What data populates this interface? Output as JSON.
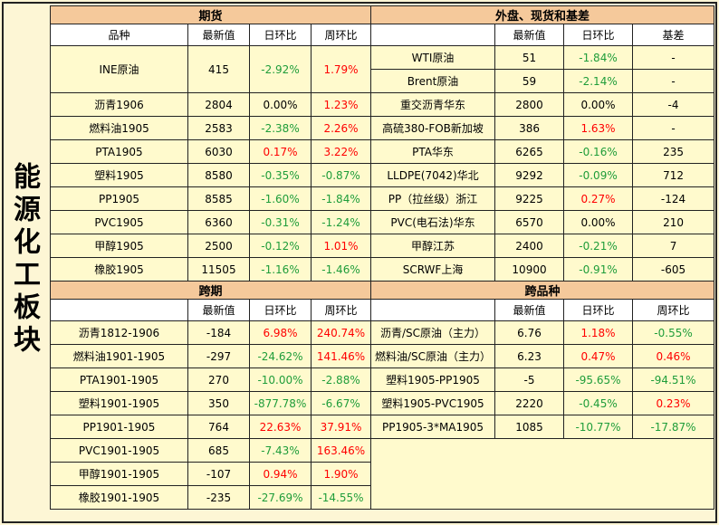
{
  "sidebar_title": "能源化工板块",
  "futures": {
    "title": "期货",
    "headers": [
      "品种",
      "最新值",
      "日环比",
      "周环比"
    ],
    "rows": [
      [
        "INE原油",
        "415",
        "-2.92%",
        "1.79%"
      ],
      [
        "沥青1906",
        "2804",
        "0.00%",
        "1.23%"
      ],
      [
        "燃料油1905",
        "2583",
        "-2.38%",
        "2.26%"
      ],
      [
        "PTA1905",
        "6030",
        "0.17%",
        "3.22%"
      ],
      [
        "塑料1905",
        "8580",
        "-0.35%",
        "-0.87%"
      ],
      [
        "PP1905",
        "8585",
        "-1.60%",
        "-1.84%"
      ],
      [
        "PVC1905",
        "6360",
        "-0.31%",
        "-1.24%"
      ],
      [
        "甲醇1905",
        "2500",
        "-0.12%",
        "1.01%"
      ],
      [
        "橡胶1905",
        "11505",
        "-1.16%",
        "-1.46%"
      ]
    ]
  },
  "external": {
    "title": "外盘、现货和基差",
    "headers": [
      "",
      "最新值",
      "日环比",
      "基差"
    ],
    "rows": [
      [
        "WTI原油",
        "51",
        "-1.84%",
        "-"
      ],
      [
        "Brent原油",
        "59",
        "-2.14%",
        "-"
      ],
      [
        "重交沥青华东",
        "2800",
        "0.00%",
        "-4"
      ],
      [
        "高硫380-FOB新加坡",
        "386",
        "1.63%",
        "-"
      ],
      [
        "PTA华东",
        "6265",
        "-0.16%",
        "235"
      ],
      [
        "LLDPE(7042)华北",
        "9292",
        "-0.09%",
        "712"
      ],
      [
        "PP（拉丝级）浙江",
        "9225",
        "0.27%",
        "-124"
      ],
      [
        "PVC(电石法)华东",
        "6570",
        "0.00%",
        "210"
      ],
      [
        "甲醇江苏",
        "2400",
        "-0.21%",
        "7"
      ],
      [
        "SCRWF上海",
        "10900",
        "-0.91%",
        "-605"
      ]
    ]
  },
  "spread": {
    "title": "跨期",
    "headers": [
      "",
      "最新值",
      "日环比",
      "周环比"
    ],
    "rows": [
      [
        "沥青1812-1906",
        "-184",
        "6.98%",
        "240.74%"
      ],
      [
        "燃料油1901-1905",
        "-297",
        "-24.62%",
        "141.46%"
      ],
      [
        "PTA1901-1905",
        "270",
        "-10.00%",
        "-2.88%"
      ],
      [
        "塑料1901-1905",
        "350",
        "-877.78%",
        "-6.67%"
      ],
      [
        "PP1901-1905",
        "764",
        "22.63%",
        "37.91%"
      ],
      [
        "PVC1901-1905",
        "685",
        "-7.43%",
        "163.46%"
      ],
      [
        "甲醇1901-1905",
        "-107",
        "0.94%",
        "1.90%"
      ],
      [
        "橡胶1901-1905",
        "-235",
        "-27.69%",
        "-14.55%"
      ]
    ]
  },
  "cross": {
    "title": "跨品种",
    "headers": [
      "",
      "最新值",
      "日环比",
      "周环比"
    ],
    "rows": [
      [
        "沥青/SC原油（主力）",
        "6.76",
        "1.18%",
        "-0.55%"
      ],
      [
        "燃料油/SC原油（主力）",
        "6.23",
        "0.47%",
        "0.46%"
      ],
      [
        "塑料1905-PP1905",
        "-5",
        "-95.65%",
        "-94.51%"
      ],
      [
        "塑料1905-PVC1905",
        "2220",
        "-0.45%",
        "0.23%"
      ],
      [
        "PP1905-3*MA1905",
        "1085",
        "-10.77%",
        "-17.87%"
      ]
    ]
  },
  "colors": {
    "up": "#ff0000",
    "down": "#1f9d3a",
    "header_bg": "#f5c99b",
    "cell_bg": "#fffacd"
  }
}
